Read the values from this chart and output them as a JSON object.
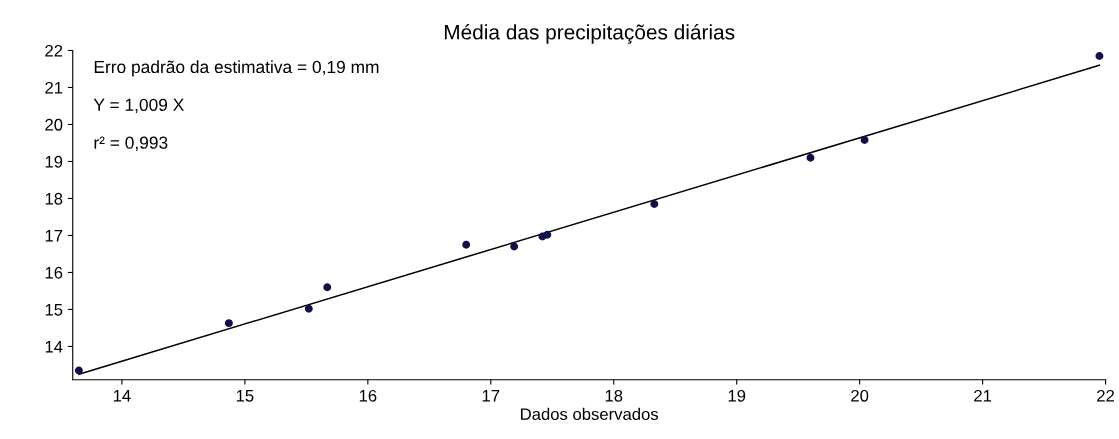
{
  "chart_data": {
    "type": "scatter",
    "title": "Média das precipitações diárias",
    "xlabel": "Dados observados",
    "annotations": [
      "Erro padrão da estimativa = 0,19 mm",
      "Y = 1,009 X",
      "r² = 0,993"
    ],
    "series": [
      {
        "color": "#10104a",
        "marker": "circle",
        "x": [
          13.65,
          14.87,
          15.52,
          15.67,
          16.8,
          17.19,
          17.42,
          17.46,
          18.33,
          19.6,
          20.04,
          21.95
        ],
        "values": [
          13.35,
          14.63,
          15.02,
          15.6,
          16.75,
          16.7,
          16.97,
          17.02,
          17.85,
          19.1,
          19.58,
          21.85
        ]
      },
      {
        "type": "line",
        "color": "#000000",
        "x": [
          13.65,
          21.95
        ],
        "values": [
          13.25,
          21.6
        ]
      }
    ],
    "xlim": [
      13.6,
      22
    ],
    "xticks": [
      14,
      15,
      16,
      17,
      18,
      19,
      20,
      21,
      22
    ],
    "ylim": [
      13.1,
      22
    ],
    "yticks": [
      14,
      15,
      16,
      17,
      18,
      19,
      20,
      21,
      22
    ],
    "grid": false
  }
}
